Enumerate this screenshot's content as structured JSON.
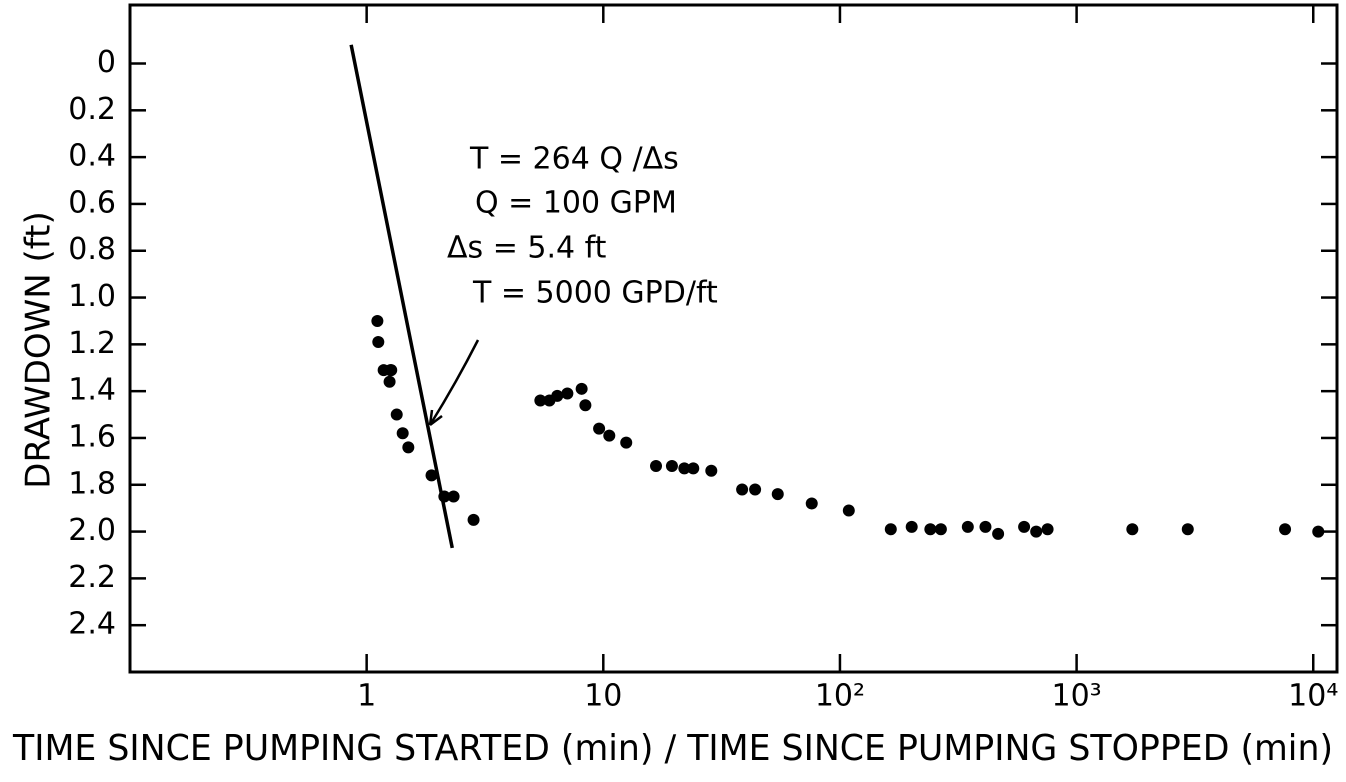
{
  "chart_data": {
    "type": "scatter",
    "x_label": "TIME SINCE PUMPING STARTED (min) / TIME SINCE PUMPING STOPPED (min)",
    "y_label": "DRAWDOWN (ft)",
    "xscale": "log",
    "y_inverted": true,
    "color": "#000000",
    "xlim": [
      0.1,
      12600
    ],
    "ylim": [
      2.6,
      -0.25
    ],
    "xticks": [
      1,
      10,
      {
        "value": 100,
        "label": "10²"
      },
      {
        "value": 1000,
        "label": "10³"
      },
      {
        "value": 10000,
        "label": "10⁴"
      }
    ],
    "yticks": [
      0,
      0.2,
      0.4,
      0.6,
      0.8,
      {
        "value": 1,
        "label": "1.0"
      },
      1.2,
      1.4,
      1.6,
      1.8,
      {
        "value": 2,
        "label": "2.0"
      },
      2.2,
      2.4
    ],
    "annotations": [
      "T = 264 Q /Δs",
      "Q = 100 GPM",
      "Δs = 5.4 ft",
      "T = 5000 GPD/ft"
    ],
    "fit_line": {
      "x": [
        0.86,
        2.3
      ],
      "values": [
        -0.08,
        2.07
      ]
    },
    "x": [
      1.11,
      1.12,
      1.18,
      1.26,
      1.25,
      1.27,
      1.34,
      1.42,
      1.5,
      1.88,
      2.13,
      2.33,
      2.83,
      5.42,
      5.92,
      6.39,
      7.05,
      8.1,
      8.4,
      9.6,
      10.6,
      12.5,
      16.7,
      19.5,
      22,
      24,
      28.6,
      38.6,
      43.8,
      54.6,
      76,
      109,
      164,
      201,
      241,
      267,
      347,
      412,
      466,
      600,
      675,
      754,
      1720,
      2950,
      7600,
      10500
    ],
    "values": [
      1.1,
      1.19,
      1.31,
      1.31,
      1.36,
      1.31,
      1.5,
      1.58,
      1.64,
      1.76,
      1.85,
      1.85,
      1.95,
      1.44,
      1.44,
      1.42,
      1.41,
      1.39,
      1.46,
      1.56,
      1.59,
      1.62,
      1.72,
      1.72,
      1.73,
      1.73,
      1.74,
      1.82,
      1.82,
      1.84,
      1.88,
      1.91,
      1.99,
      1.98,
      1.99,
      1.99,
      1.98,
      1.98,
      2.01,
      1.98,
      2.0,
      1.99,
      1.99,
      1.99,
      1.99,
      2.0
    ]
  }
}
